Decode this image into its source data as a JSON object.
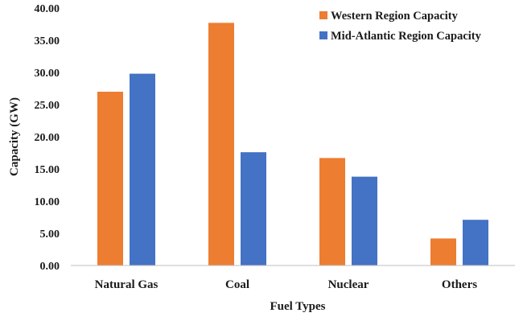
{
  "chart_data": {
    "type": "bar",
    "title": "",
    "xlabel": "Fuel  Types",
    "ylabel": "Capacity  (GW)",
    "categories": [
      "Natural Gas",
      "Coal",
      "Nuclear",
      "Others"
    ],
    "series": [
      {
        "name": "Western Region Capacity",
        "color": "#ed7d31",
        "values": [
          27.0,
          37.7,
          16.7,
          4.2
        ]
      },
      {
        "name": "Mid-Atlantic Region Capacity",
        "color": "#4472c4",
        "values": [
          29.8,
          17.6,
          13.8,
          7.1
        ]
      }
    ],
    "ylim": [
      0,
      40
    ],
    "yticks": [
      "0.00",
      "5.00",
      "10.00",
      "15.00",
      "20.00",
      "25.00",
      "30.00",
      "35.00",
      "40.00"
    ],
    "ytick_values": [
      0,
      5,
      10,
      15,
      20,
      25,
      30,
      35,
      40
    ],
    "grid": false,
    "legend_position": "top-right"
  }
}
